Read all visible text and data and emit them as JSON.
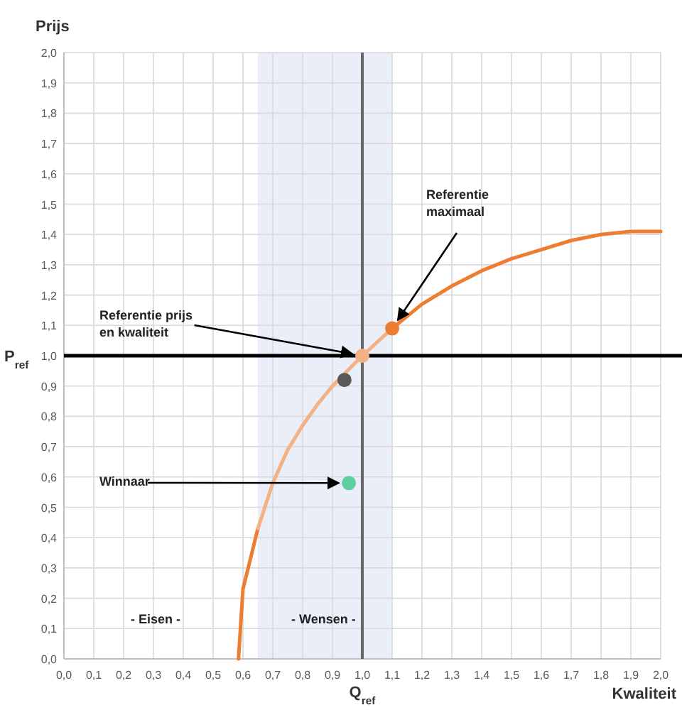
{
  "chart_data": {
    "type": "line",
    "xlabel": "Kwaliteit",
    "ylabel": "Prijs",
    "xlim": [
      0,
      2
    ],
    "ylim": [
      0,
      2
    ],
    "xticks": [
      {
        "value": 0,
        "label": "0,0"
      },
      {
        "value": 0.1,
        "label": "0,1"
      },
      {
        "value": 0.2,
        "label": "0,2"
      },
      {
        "value": 0.3,
        "label": "0,3"
      },
      {
        "value": 0.4,
        "label": "0,4"
      },
      {
        "value": 0.5,
        "label": "0,5"
      },
      {
        "value": 0.6,
        "label": "0,6"
      },
      {
        "value": 0.7,
        "label": "0,7"
      },
      {
        "value": 0.8,
        "label": "0,8"
      },
      {
        "value": 0.9,
        "label": "0,9"
      },
      {
        "value": 1,
        "label": "1,0"
      },
      {
        "value": 1.1,
        "label": "1,1"
      },
      {
        "value": 1.2,
        "label": "1,2"
      },
      {
        "value": 1.3,
        "label": "1,3"
      },
      {
        "value": 1.4,
        "label": "1,4"
      },
      {
        "value": 1.5,
        "label": "1,5"
      },
      {
        "value": 1.6,
        "label": "1,6"
      },
      {
        "value": 1.7,
        "label": "1,7"
      },
      {
        "value": 1.8,
        "label": "1,8"
      },
      {
        "value": 1.9,
        "label": "1,9"
      },
      {
        "value": 2,
        "label": "2,0"
      }
    ],
    "yticks": [
      {
        "value": 0,
        "label": "0,0"
      },
      {
        "value": 0.1,
        "label": "0,1"
      },
      {
        "value": 0.2,
        "label": "0,2"
      },
      {
        "value": 0.3,
        "label": "0,3"
      },
      {
        "value": 0.4,
        "label": "0,4"
      },
      {
        "value": 0.5,
        "label": "0,5"
      },
      {
        "value": 0.6,
        "label": "0,6"
      },
      {
        "value": 0.7,
        "label": "0,7"
      },
      {
        "value": 0.8,
        "label": "0,8"
      },
      {
        "value": 0.9,
        "label": "0,9"
      },
      {
        "value": 1,
        "label": "1,0"
      },
      {
        "value": 1.1,
        "label": "1,1"
      },
      {
        "value": 1.2,
        "label": "1,2"
      },
      {
        "value": 1.3,
        "label": "1,3"
      },
      {
        "value": 1.4,
        "label": "1,4"
      },
      {
        "value": 1.5,
        "label": "1,5"
      },
      {
        "value": 1.6,
        "label": "1,6"
      },
      {
        "value": 1.7,
        "label": "1,7"
      },
      {
        "value": 1.8,
        "label": "1,8"
      },
      {
        "value": 1.9,
        "label": "1,9"
      },
      {
        "value": 2,
        "label": "2,0"
      }
    ],
    "grid": true,
    "line_style": "solid",
    "series": [
      {
        "color": "#ed7d31",
        "marker": "none",
        "x": [
          0.585,
          0.6,
          0.65
        ],
        "values": [
          0,
          0.23,
          0.43
        ]
      },
      {
        "color": "#f4b183",
        "marker": "none",
        "x": [
          0.65,
          0.7,
          0.75,
          0.8,
          0.85,
          0.9,
          0.95,
          1.0,
          1.1
        ],
        "values": [
          0.43,
          0.58,
          0.69,
          0.77,
          0.84,
          0.9,
          0.95,
          1.0,
          1.09
        ]
      },
      {
        "color": "#ed7d31",
        "marker": "none",
        "x": [
          1.1,
          1.2,
          1.3,
          1.4,
          1.5,
          1.6,
          1.7,
          1.8,
          1.9,
          2.0
        ],
        "values": [
          1.09,
          1.17,
          1.23,
          1.28,
          1.32,
          1.35,
          1.38,
          1.4,
          1.41,
          1.41
        ]
      },
      {
        "type": "scatter",
        "marker": "circle",
        "x": [
          1.0,
          1.1,
          0.94,
          0.955
        ],
        "values": [
          1.0,
          1.09,
          0.92,
          0.58
        ],
        "colors": [
          "#f4b183",
          "#ed7d31",
          "#595959",
          "#5fcf9f"
        ]
      }
    ],
    "ref_lines": [
      {
        "axis": "y",
        "value": 1,
        "label": "P$_{ref}$",
        "color": "#000000"
      },
      {
        "axis": "x",
        "value": 1,
        "label": "Q$_{ref}$",
        "color": "#666666"
      }
    ],
    "bands": [
      {
        "axis": "x",
        "from": 0.65,
        "to": 1.1,
        "color": "#e9eef8"
      }
    ],
    "annotations": [
      {
        "text": "Referentie prijs en kwaliteit",
        "x": 1.0,
        "y": 1.0
      },
      {
        "text": "Referentie maximaal",
        "x": 1.1,
        "y": 1.09
      },
      {
        "text": "Winnaar",
        "x": 0.955,
        "y": 0.58
      },
      "- Eisen -",
      "- Wensen -"
    ]
  }
}
